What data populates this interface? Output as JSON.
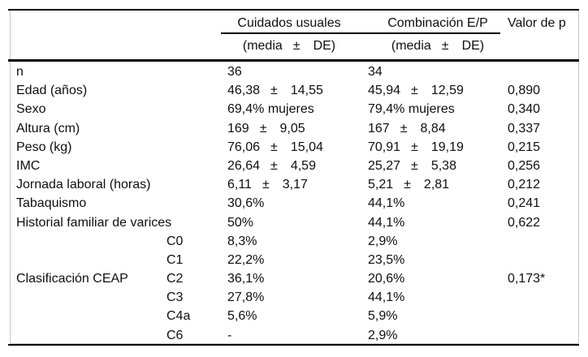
{
  "table": {
    "columns": {
      "group1": "Cuidados usuales",
      "group2": "Combinación E/P",
      "p": "Valor de p"
    },
    "subheader": {
      "open": "(media",
      "pm": "±",
      "close": "DE)"
    },
    "rows": [
      {
        "label": "n",
        "sublabel": "",
        "c1": {
          "text": "36"
        },
        "c2": {
          "text": "34"
        },
        "p": ""
      },
      {
        "label": "Edad (años)",
        "sublabel": "",
        "c1": {
          "mean": "46,38",
          "pm": "±",
          "sd": "14,55"
        },
        "c2": {
          "mean": "45,94",
          "pm": "±",
          "sd": "12,59"
        },
        "p": "0,890"
      },
      {
        "label": "Sexo",
        "sublabel": "",
        "c1": {
          "text": "69,4% mujeres"
        },
        "c2": {
          "text": "79,4% mujeres"
        },
        "p": "0,340"
      },
      {
        "label": "Altura (cm)",
        "sublabel": "",
        "c1": {
          "mean": "169",
          "pm": "±",
          "sd": "9,05"
        },
        "c2": {
          "mean": "167",
          "pm": "±",
          "sd": "8,84"
        },
        "p": "0,337"
      },
      {
        "label": "Peso (kg)",
        "sublabel": "",
        "c1": {
          "mean": "76,06",
          "pm": "±",
          "sd": "15,04"
        },
        "c2": {
          "mean": "70,91",
          "pm": "±",
          "sd": "19,19"
        },
        "p": "0,215"
      },
      {
        "label": "IMC",
        "sublabel": "",
        "c1": {
          "mean": "26,64",
          "pm": "±",
          "sd": "4,59"
        },
        "c2": {
          "mean": "25,27",
          "pm": "±",
          "sd": "5,38"
        },
        "p": "0,256"
      },
      {
        "label": "Jornada laboral (horas)",
        "sublabel": "",
        "c1": {
          "mean": "6,11",
          "pm": "±",
          "sd": "3,17"
        },
        "c2": {
          "mean": "5,21",
          "pm": "±",
          "sd": "2,81"
        },
        "p": "0,212"
      },
      {
        "label": "Tabaquismo",
        "sublabel": "",
        "c1": {
          "text": "30,6%"
        },
        "c2": {
          "text": "44,1%"
        },
        "p": "0,241"
      },
      {
        "label": "Historial familiar de varices",
        "sublabel": "",
        "c1": {
          "text": "50%"
        },
        "c2": {
          "text": "44,1%"
        },
        "p": "0,622"
      },
      {
        "label": "",
        "sublabel": "C0",
        "c1": {
          "text": "8,3%"
        },
        "c2": {
          "text": "2,9%"
        },
        "p": ""
      },
      {
        "label": "",
        "sublabel": "C1",
        "c1": {
          "text": "22,2%"
        },
        "c2": {
          "text": "23,5%"
        },
        "p": ""
      },
      {
        "label": "Clasificación CEAP",
        "sublabel": "C2",
        "c1": {
          "text": "36,1%"
        },
        "c2": {
          "text": "20,6%"
        },
        "p": "0,173*"
      },
      {
        "label": "",
        "sublabel": "C3",
        "c1": {
          "text": "27,8%"
        },
        "c2": {
          "text": "44,1%"
        },
        "p": ""
      },
      {
        "label": "",
        "sublabel": "C4a",
        "c1": {
          "text": "5,6%"
        },
        "c2": {
          "text": "5,9%"
        },
        "p": ""
      },
      {
        "label": "",
        "sublabel": "C6",
        "c1": {
          "text": "-"
        },
        "c2": {
          "text": "2,9%"
        },
        "p": ""
      }
    ]
  }
}
